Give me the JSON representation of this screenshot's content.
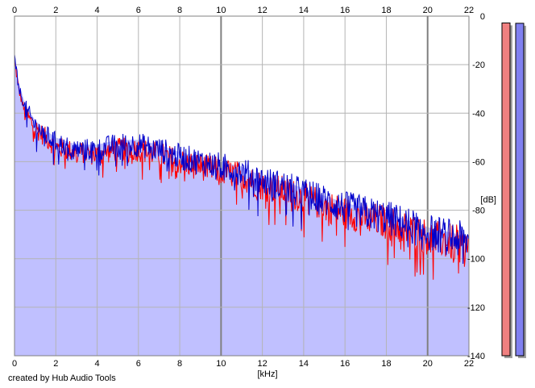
{
  "chart_data": {
    "type": "line",
    "xlabel": "[kHz]",
    "ylabel": "[dB]",
    "xlim": [
      0,
      22
    ],
    "ylim": [
      -140,
      0
    ],
    "x_ticks": [
      0,
      2,
      4,
      6,
      8,
      10,
      12,
      14,
      16,
      18,
      20,
      22
    ],
    "y_ticks": [
      0,
      -20,
      -40,
      -60,
      -80,
      -100,
      -120,
      -140
    ],
    "grid": true,
    "series": [
      {
        "color": "#ff0000",
        "x": [
          0.0,
          0.2,
          0.5,
          1.0,
          1.5,
          2.0,
          3.0,
          4.0,
          5.0,
          6.0,
          7.0,
          8.0,
          9.0,
          10.0,
          11.0,
          12.0,
          13.0,
          14.0,
          15.0,
          16.0,
          17.0,
          18.0,
          19.0,
          20.0,
          21.0,
          22.0
        ],
        "y": [
          -18,
          -30,
          -40,
          -46,
          -50,
          -54,
          -56,
          -57,
          -55,
          -55,
          -57,
          -60,
          -62,
          -64,
          -66,
          -70,
          -72,
          -75,
          -78,
          -81,
          -83,
          -85,
          -88,
          -91,
          -93,
          -95
        ]
      },
      {
        "color": "#0000cc",
        "x": [
          0.0,
          0.2,
          0.5,
          1.0,
          1.5,
          2.0,
          3.0,
          4.0,
          5.0,
          6.0,
          7.0,
          8.0,
          9.0,
          10.0,
          11.0,
          12.0,
          13.0,
          14.0,
          15.0,
          16.0,
          17.0,
          18.0,
          19.0,
          20.0,
          21.0,
          22.0
        ],
        "y": [
          -17,
          -29,
          -38,
          -45,
          -49,
          -52,
          -55,
          -55,
          -53,
          -53,
          -55,
          -58,
          -60,
          -62,
          -64,
          -68,
          -70,
          -73,
          -76,
          -79,
          -81,
          -83,
          -86,
          -89,
          -91,
          -93
        ]
      }
    ],
    "level_meters": [
      {
        "color": "#f08080",
        "level_db": -3
      },
      {
        "color": "#8080f0",
        "level_db": -6
      }
    ]
  },
  "credit": "created by Hub Audio Tools",
  "colors": {
    "fill": "#c0c0ff",
    "grid": "#b4b4b4",
    "major_grid": "#808080"
  }
}
